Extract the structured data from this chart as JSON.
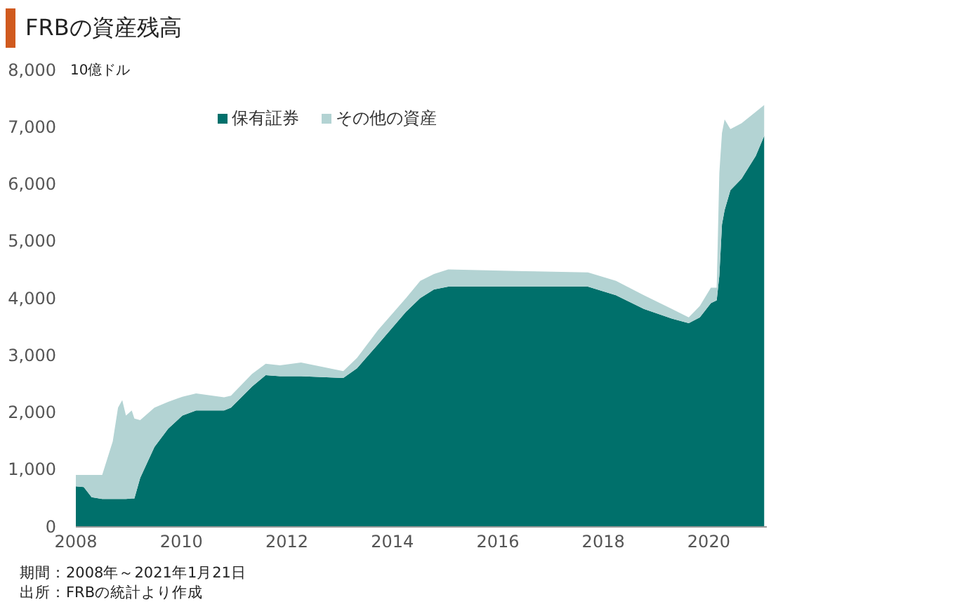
{
  "chart_data": {
    "type": "area",
    "stacked": true,
    "title": "FRBの資産残高",
    "ylabel": "10億ドル",
    "legend": "top",
    "grid": false,
    "annotations": [
      "期間：2008年～2021年1月21日",
      "出所：FRBの統計より作成"
    ],
    "x": [
      2008.0,
      2008.15,
      2008.3,
      2008.5,
      2008.7,
      2008.8,
      2008.88,
      2008.95,
      2009.06,
      2009.11,
      2009.22,
      2009.49,
      2009.75,
      2010.02,
      2010.28,
      2010.81,
      2010.94,
      2011.34,
      2011.6,
      2011.87,
      2012.27,
      2013.07,
      2013.33,
      2013.73,
      2014.26,
      2014.53,
      2014.79,
      2015.06,
      2016.5,
      2017.71,
      2018.24,
      2018.77,
      2019.3,
      2019.62,
      2019.83,
      2020.04,
      2020.15,
      2020.2,
      2020.25,
      2020.3,
      2020.41,
      2020.62,
      2020.89,
      2021.05
    ],
    "series": [
      {
        "name": "保有証券",
        "color": "#00706b",
        "values": [
          710,
          700,
          520,
          490,
          490,
          490,
          490,
          490,
          500,
          500,
          860,
          1400,
          1720,
          1950,
          2040,
          2040,
          2090,
          2460,
          2660,
          2640,
          2640,
          2610,
          2780,
          3200,
          3770,
          4010,
          4160,
          4210,
          4210,
          4210,
          4060,
          3820,
          3650,
          3570,
          3670,
          3920,
          3970,
          4400,
          5300,
          5550,
          5900,
          6100,
          6500,
          6850
        ]
      },
      {
        "name": "その他の資産",
        "color": "#b3d3d3",
        "values": [
          200,
          210,
          390,
          420,
          1010,
          1600,
          1730,
          1460,
          1540,
          1400,
          1010,
          690,
          470,
          330,
          300,
          230,
          210,
          220,
          200,
          190,
          240,
          120,
          180,
          250,
          240,
          300,
          270,
          300,
          270,
          250,
          250,
          240,
          170,
          100,
          200,
          270,
          220,
          1800,
          1600,
          1590,
          1070,
          970,
          770,
          540
        ]
      }
    ],
    "xlim": [
      2008,
      2021.1
    ],
    "xticks": [
      2008,
      2010,
      2012,
      2014,
      2016,
      2018,
      2020
    ],
    "ylim": [
      0,
      8000
    ],
    "yticks": [
      0,
      {
        "value": 1000,
        "label": "1,000"
      },
      {
        "value": 2000,
        "label": "2,000"
      },
      {
        "value": 3000,
        "label": "3,000"
      },
      {
        "value": 4000,
        "label": "4,000"
      },
      {
        "value": 5000,
        "label": "5,000"
      },
      {
        "value": 6000,
        "label": "6,000"
      },
      {
        "value": 7000,
        "label": "7,000"
      },
      {
        "value": 8000,
        "label": "8,000"
      }
    ]
  }
}
